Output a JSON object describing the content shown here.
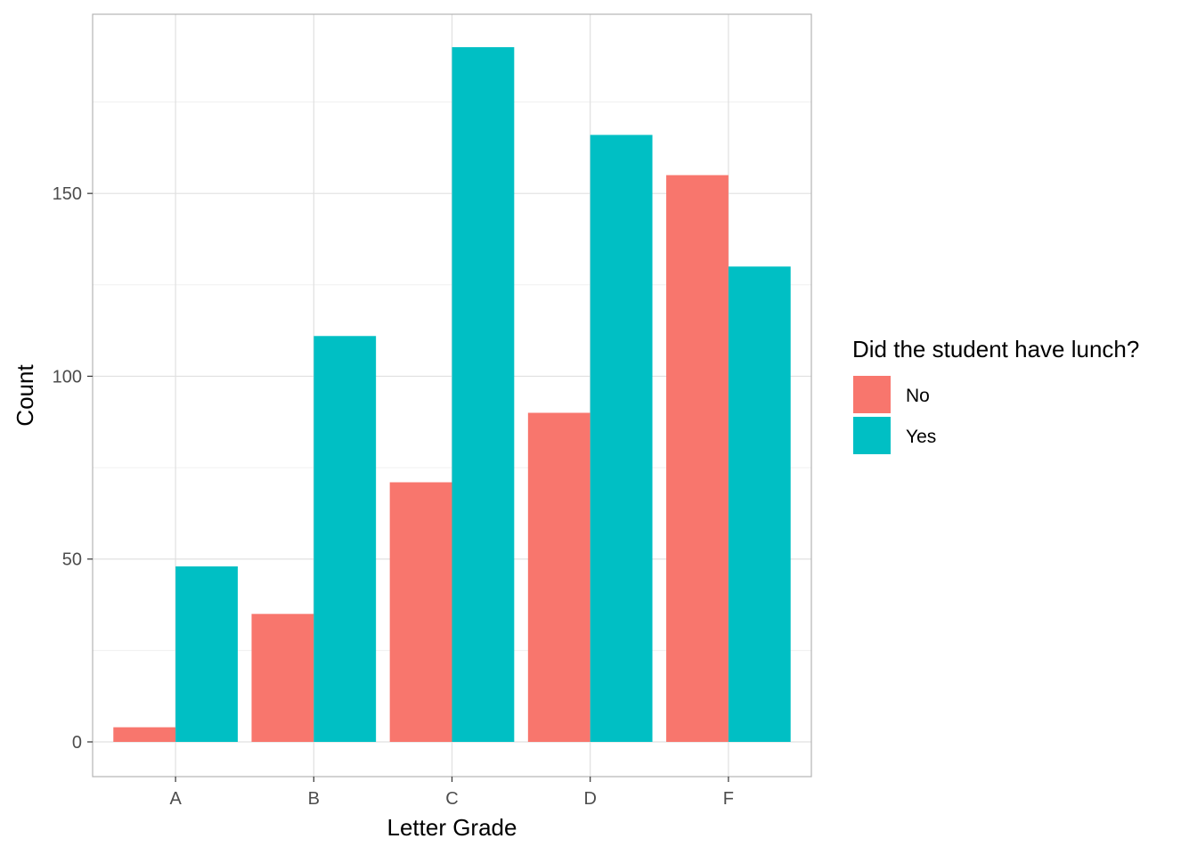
{
  "chart_data": {
    "type": "bar",
    "categories": [
      "A",
      "B",
      "C",
      "D",
      "F"
    ],
    "series": [
      {
        "name": "No",
        "values": [
          4,
          35,
          71,
          90,
          155
        ],
        "color": "#F8766D"
      },
      {
        "name": "Yes",
        "values": [
          48,
          111,
          190,
          166,
          130
        ],
        "color": "#00BFC4"
      }
    ],
    "xlabel": "Letter Grade",
    "ylabel": "Count",
    "yticks": [
      0,
      50,
      100,
      150
    ],
    "ylim": [
      -9.5,
      199
    ],
    "grid": true,
    "legend": {
      "title": "Did the student have lunch?",
      "position": "right"
    }
  }
}
